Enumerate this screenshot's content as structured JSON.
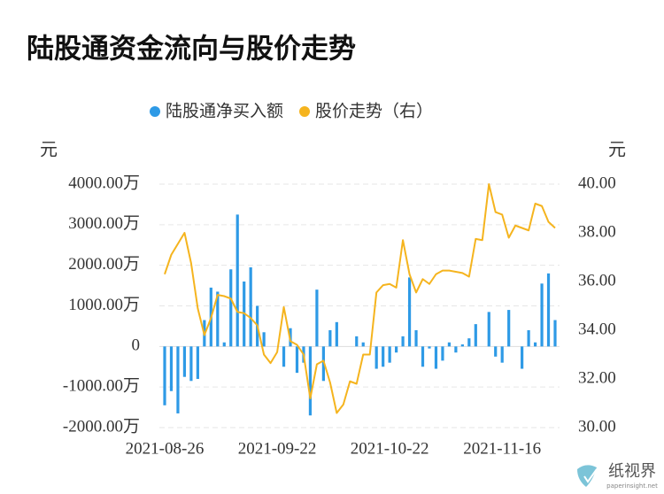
{
  "chart_data": {
    "type": "bar",
    "title": "陆股通资金流向与股价走势",
    "categories": [
      "2021-08-26",
      null,
      null,
      null,
      null,
      null,
      null,
      null,
      null,
      null,
      null,
      null,
      null,
      null,
      null,
      null,
      null,
      "2021-09-22",
      null,
      null,
      null,
      null,
      null,
      null,
      null,
      null,
      null,
      null,
      null,
      null,
      null,
      null,
      null,
      null,
      "2021-10-22",
      null,
      null,
      null,
      null,
      null,
      null,
      null,
      null,
      null,
      null,
      null,
      null,
      null,
      null,
      null,
      null,
      "2021-11-16",
      null,
      null,
      null,
      null,
      null,
      null,
      null,
      null
    ],
    "series": [
      {
        "name": "陆股通净买入额",
        "color": "#2e9ae6",
        "type": "bar",
        "values": [
          -1450,
          -1100,
          -1650,
          -750,
          -850,
          -800,
          650,
          1450,
          1350,
          100,
          1900,
          3250,
          1600,
          1950,
          1000,
          350,
          0,
          0,
          -500,
          450,
          -650,
          -400,
          -1700,
          1400,
          -850,
          400,
          600,
          0,
          0,
          250,
          100,
          0,
          -550,
          -500,
          -400,
          -150,
          250,
          1700,
          400,
          -500,
          -50,
          -550,
          -350,
          100,
          -150,
          50,
          200,
          550,
          0,
          850,
          -250,
          -400,
          900,
          0,
          -550,
          400,
          100,
          1550,
          1800,
          650
        ]
      },
      {
        "name": "股价走势（右）",
        "color": "#f5b41e",
        "type": "line",
        "axis": "y2",
        "values": [
          36.3,
          37.1,
          37.55,
          38.0,
          36.75,
          34.9,
          33.8,
          34.5,
          35.45,
          35.4,
          35.3,
          34.75,
          34.7,
          34.5,
          34.2,
          33.0,
          32.65,
          33.1,
          34.95,
          33.55,
          33.4,
          33.0,
          31.2,
          32.6,
          32.75,
          31.85,
          30.6,
          30.95,
          31.9,
          31.8,
          33.0,
          33.0,
          35.55,
          35.85,
          35.9,
          35.75,
          37.7,
          36.3,
          35.55,
          36.1,
          35.9,
          36.3,
          36.45,
          36.45,
          36.4,
          36.35,
          36.2,
          37.75,
          37.7,
          40.0,
          38.85,
          38.75,
          37.8,
          38.3,
          38.2,
          38.1,
          39.2,
          39.1,
          38.45,
          38.2
        ]
      }
    ],
    "y_unit": "元",
    "y2_unit": "元",
    "ylim": [
      -2000,
      4000
    ],
    "yticks": [
      {
        "value": -2000,
        "label": "-2000.00万"
      },
      {
        "value": -1000,
        "label": "-1000.00万"
      },
      0,
      {
        "value": 1000,
        "label": "1000.00万"
      },
      {
        "value": 2000,
        "label": "2000.00万"
      },
      {
        "value": 3000,
        "label": "3000.00万"
      },
      {
        "value": 4000,
        "label": "4000.00万"
      }
    ],
    "y2lim": [
      30,
      40
    ],
    "y2ticks": [
      {
        "value": 30,
        "label": "30.00"
      },
      {
        "value": 32,
        "label": "32.00"
      },
      {
        "value": 34,
        "label": "34.00"
      },
      {
        "value": 36,
        "label": "36.00"
      },
      {
        "value": 38,
        "label": "38.00"
      },
      {
        "value": 40,
        "label": "40.00"
      }
    ],
    "grid": true
  },
  "watermark": {
    "name": "纸视界",
    "site": "paperinsight.net"
  }
}
